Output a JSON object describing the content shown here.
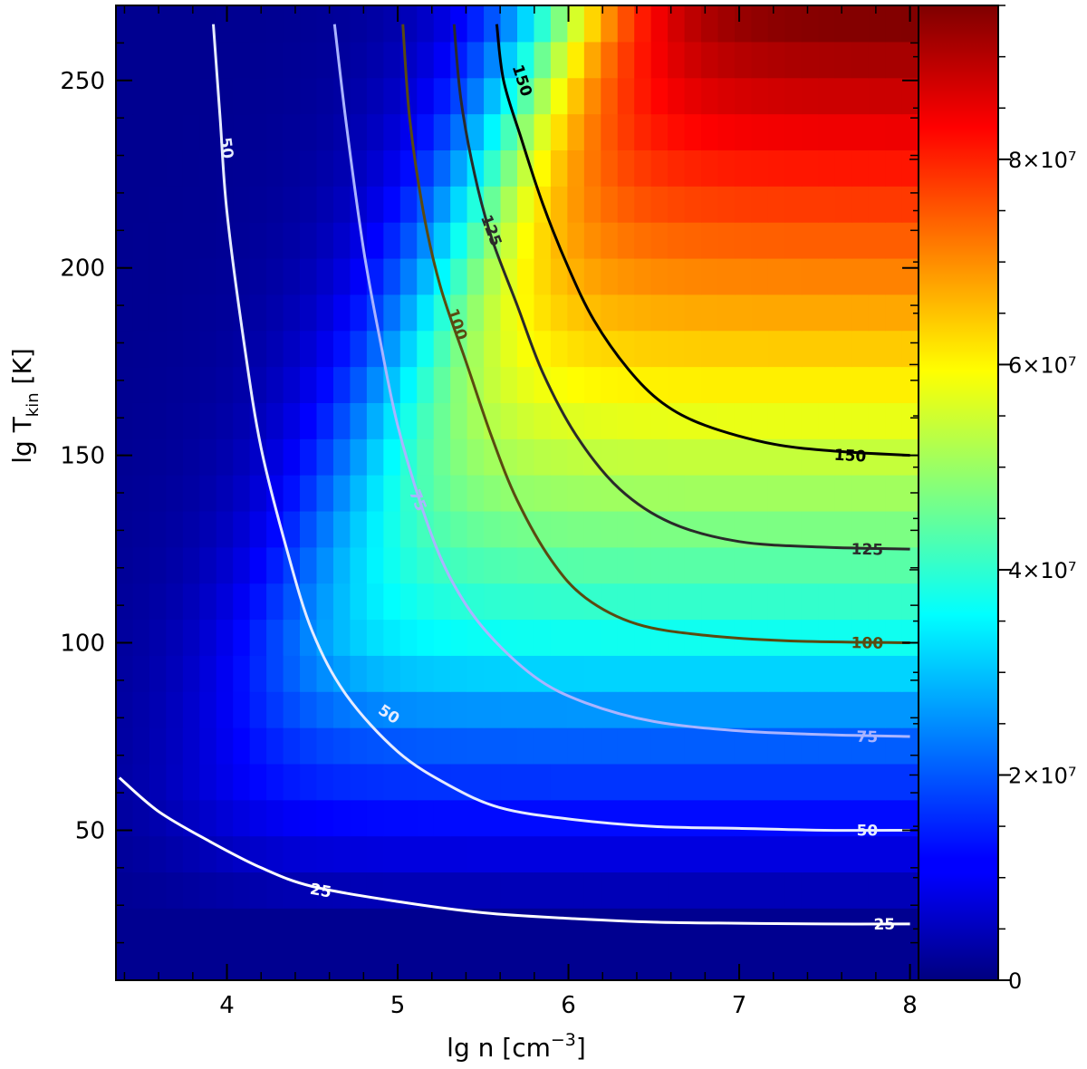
{
  "chart_data": {
    "type": "heatmap",
    "title": "",
    "xlabel": "lg n [cm",
    "xlabel_superscript": "−3",
    "xlabel_suffix": "]",
    "ylabel": "lg T",
    "ylabel_subscript": "kin",
    "ylabel_suffix": " [K]",
    "xlim": [
      3.35,
      8.05
    ],
    "ylim": [
      10,
      270
    ],
    "x_ticks": [
      4,
      5,
      6,
      7,
      8
    ],
    "x_tick_labels": [
      "4",
      "5",
      "6",
      "7",
      "8"
    ],
    "y_ticks": [
      50,
      100,
      150,
      200,
      250
    ],
    "y_tick_labels": [
      "50",
      "100",
      "150",
      "200",
      "250"
    ],
    "colorscale": "jet",
    "colorbar": {
      "range": [
        0,
        95
      ],
      "ticks": [
        0,
        20,
        40,
        60,
        80
      ],
      "tick_labels": [
        "0",
        "2×10⁷",
        "4×10⁷",
        "6×10⁷",
        "8×10⁷"
      ]
    },
    "colorscale_model": {
      "x_half_density": [
        3.9,
        4.6,
        5.3,
        6.0
      ],
      "max_value": 95
    },
    "contours": [
      {
        "level": 25,
        "label": "25",
        "color": "#ffffff",
        "points": [
          [
            3.37,
            64
          ],
          [
            3.6,
            55
          ],
          [
            3.9,
            47
          ],
          [
            4.2,
            40
          ],
          [
            4.5,
            35
          ],
          [
            5.0,
            31
          ],
          [
            5.5,
            28
          ],
          [
            6.0,
            26.5
          ],
          [
            6.5,
            25.5
          ],
          [
            7.0,
            25.2
          ],
          [
            7.5,
            25
          ],
          [
            8.0,
            25
          ]
        ],
        "labels_at": [
          [
            4.55,
            34
          ],
          [
            7.85,
            25
          ]
        ]
      },
      {
        "level": 50,
        "label": "50",
        "color": "#e6ecff",
        "points": [
          [
            3.92,
            265
          ],
          [
            3.96,
            240
          ],
          [
            4.0,
            215
          ],
          [
            4.1,
            180
          ],
          [
            4.2,
            152
          ],
          [
            4.35,
            125
          ],
          [
            4.5,
            103
          ],
          [
            4.7,
            86
          ],
          [
            5.0,
            71
          ],
          [
            5.3,
            62
          ],
          [
            5.6,
            56
          ],
          [
            6.0,
            53
          ],
          [
            6.5,
            51
          ],
          [
            7.0,
            50.5
          ],
          [
            7.5,
            50
          ],
          [
            8.0,
            50
          ]
        ],
        "labels_at": [
          [
            4.0,
            232
          ],
          [
            4.95,
            81
          ],
          [
            7.75,
            50
          ]
        ]
      },
      {
        "level": 75,
        "label": "75",
        "color": "#aab4ff",
        "points": [
          [
            4.63,
            265
          ],
          [
            4.7,
            238
          ],
          [
            4.8,
            205
          ],
          [
            4.9,
            180
          ],
          [
            5.0,
            158
          ],
          [
            5.15,
            135
          ],
          [
            5.3,
            118
          ],
          [
            5.5,
            104
          ],
          [
            5.8,
            91
          ],
          [
            6.1,
            84
          ],
          [
            6.5,
            79
          ],
          [
            7.0,
            76.5
          ],
          [
            7.5,
            75.5
          ],
          [
            8.0,
            75
          ]
        ],
        "labels_at": [
          [
            5.12,
            138
          ],
          [
            7.75,
            75
          ]
        ]
      },
      {
        "level": 100,
        "label": "100",
        "color": "#5a4a10",
        "points": [
          [
            5.03,
            265
          ],
          [
            5.07,
            240
          ],
          [
            5.15,
            215
          ],
          [
            5.25,
            195
          ],
          [
            5.4,
            175
          ],
          [
            5.55,
            155
          ],
          [
            5.7,
            138
          ],
          [
            5.9,
            122
          ],
          [
            6.1,
            112
          ],
          [
            6.4,
            105
          ],
          [
            6.8,
            102
          ],
          [
            7.3,
            100.5
          ],
          [
            8.0,
            100
          ]
        ],
        "labels_at": [
          [
            5.35,
            185
          ],
          [
            7.75,
            100
          ]
        ]
      },
      {
        "level": 125,
        "label": "125",
        "color": "#2a2a2a",
        "points": [
          [
            5.33,
            265
          ],
          [
            5.37,
            245
          ],
          [
            5.45,
            225
          ],
          [
            5.55,
            208
          ],
          [
            5.7,
            190
          ],
          [
            5.85,
            172
          ],
          [
            6.05,
            155
          ],
          [
            6.3,
            141
          ],
          [
            6.6,
            132
          ],
          [
            7.0,
            127
          ],
          [
            7.5,
            125.5
          ],
          [
            8.0,
            125
          ]
        ],
        "labels_at": [
          [
            5.55,
            210
          ],
          [
            7.75,
            125
          ]
        ]
      },
      {
        "level": 150,
        "label": "150",
        "color": "#000000",
        "points": [
          [
            5.58,
            265
          ],
          [
            5.62,
            250
          ],
          [
            5.72,
            235
          ],
          [
            5.85,
            217
          ],
          [
            6.0,
            200
          ],
          [
            6.15,
            186
          ],
          [
            6.35,
            173
          ],
          [
            6.55,
            164
          ],
          [
            6.8,
            158
          ],
          [
            7.2,
            153
          ],
          [
            7.6,
            151
          ],
          [
            8.0,
            150
          ]
        ],
        "labels_at": [
          [
            5.73,
            250
          ],
          [
            7.65,
            150
          ]
        ]
      }
    ]
  }
}
